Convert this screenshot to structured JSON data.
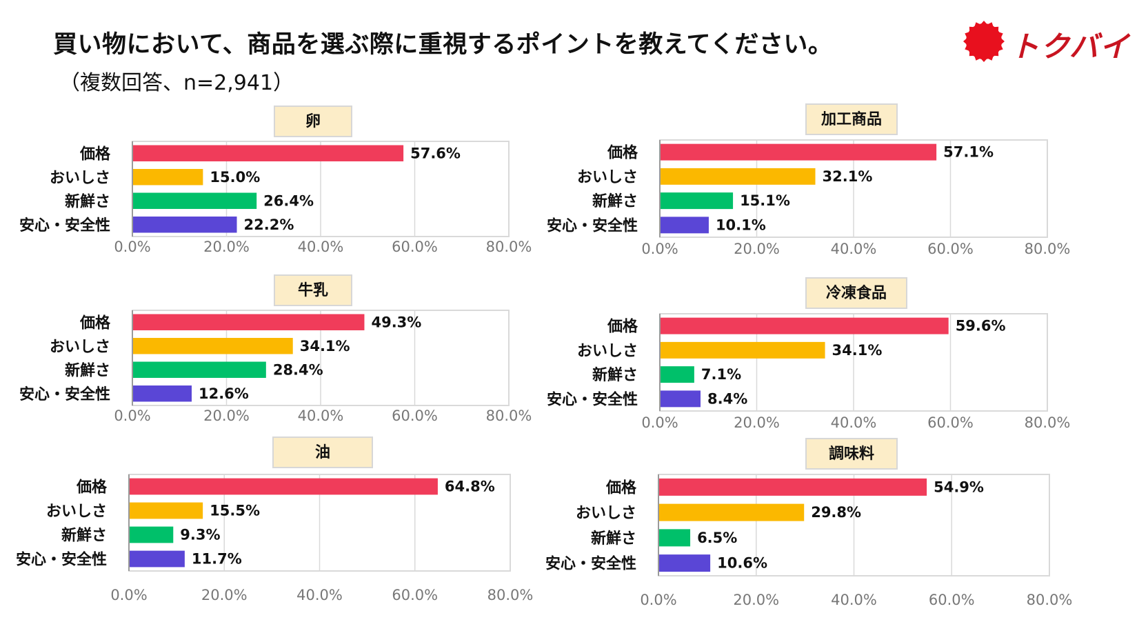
{
  "title": "買い物において、商品を選ぶ際に重視するポイントを教えてください。",
  "subtitle": "（複数回答、n=2,941）",
  "logo_text": "トクバイ",
  "colors": {
    "price": "#f03c5a",
    "taste": "#fbb800",
    "fresh": "#00c06a",
    "safety": "#5a46d6",
    "logo": "#e8101e"
  },
  "chart_data": [
    {
      "type": "bar",
      "title": "卵",
      "categories": [
        "価格",
        "おいしさ",
        "新鮮さ",
        "安心・安全性"
      ],
      "values": [
        57.6,
        15.0,
        26.4,
        22.2
      ],
      "xlim": [
        0,
        80
      ],
      "ticks": [
        "0.0%",
        "20.0%",
        "40.0%",
        "60.0%",
        "80.0%"
      ],
      "labels": [
        "57.6%",
        "15.0%",
        "26.4%",
        "22.2%"
      ]
    },
    {
      "type": "bar",
      "title": "加工商品",
      "categories": [
        "価格",
        "おいしさ",
        "新鮮さ",
        "安心・安全性"
      ],
      "values": [
        57.1,
        32.1,
        15.1,
        10.1
      ],
      "xlim": [
        0,
        80
      ],
      "ticks": [
        "0.0%",
        "20.0%",
        "40.0%",
        "60.0%",
        "80.0%"
      ],
      "labels": [
        "57.1%",
        "32.1%",
        "15.1%",
        "10.1%"
      ]
    },
    {
      "type": "bar",
      "title": "牛乳",
      "categories": [
        "価格",
        "おいしさ",
        "新鮮さ",
        "安心・安全性"
      ],
      "values": [
        49.3,
        34.1,
        28.4,
        12.6
      ],
      "xlim": [
        0,
        80
      ],
      "ticks": [
        "0.0%",
        "20.0%",
        "40.0%",
        "60.0%",
        "80.0%"
      ],
      "labels": [
        "49.3%",
        "34.1%",
        "28.4%",
        "12.6%"
      ]
    },
    {
      "type": "bar",
      "title": "冷凍食品",
      "categories": [
        "価格",
        "おいしさ",
        "新鮮さ",
        "安心・安全性"
      ],
      "values": [
        59.6,
        34.1,
        7.1,
        8.4
      ],
      "xlim": [
        0,
        80
      ],
      "ticks": [
        "0.0%",
        "20.0%",
        "40.0%",
        "60.0%",
        "80.0%"
      ],
      "labels": [
        "59.6%",
        "34.1%",
        "7.1%",
        "8.4%"
      ]
    },
    {
      "type": "bar",
      "title": "油",
      "categories": [
        "価格",
        "おいしさ",
        "新鮮さ",
        "安心・安全性"
      ],
      "values": [
        64.8,
        15.5,
        9.3,
        11.7
      ],
      "xlim": [
        0,
        80
      ],
      "ticks": [
        "0.0%",
        "20.0%",
        "40.0%",
        "60.0%",
        "80.0%"
      ],
      "labels": [
        "64.8%",
        "15.5%",
        "9.3%",
        "11.7%"
      ]
    },
    {
      "type": "bar",
      "title": "調味料",
      "categories": [
        "価格",
        "おいしさ",
        "新鮮さ",
        "安心・安全性"
      ],
      "values": [
        54.9,
        29.8,
        6.5,
        10.6
      ],
      "xlim": [
        0,
        80
      ],
      "ticks": [
        "0.0%",
        "20.0%",
        "40.0%",
        "60.0%",
        "80.0%"
      ],
      "labels": [
        "54.9%",
        "29.8%",
        "6.5%",
        "10.6%"
      ]
    }
  ]
}
